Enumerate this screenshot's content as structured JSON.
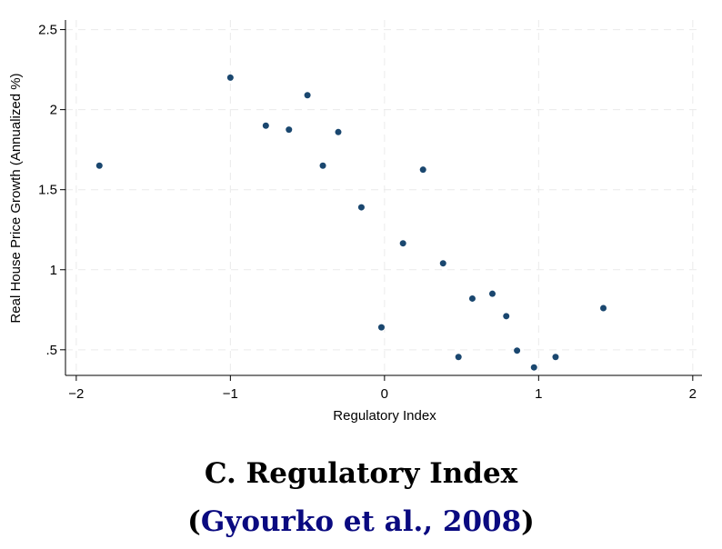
{
  "chart_data": {
    "type": "scatter",
    "x_label": "Regulatory Index",
    "y_label": "Real House Price Growth (Annualized %)",
    "x": [
      -1.85,
      -1.0,
      -0.77,
      -0.62,
      -0.5,
      -0.3,
      -0.4,
      -0.15,
      0.25,
      0.12,
      -0.02,
      0.38,
      0.57,
      0.7,
      0.79,
      0.48,
      0.86,
      0.97,
      1.11,
      1.42
    ],
    "values": [
      1.65,
      2.2,
      1.9,
      1.875,
      2.09,
      1.86,
      1.65,
      1.39,
      1.625,
      1.165,
      0.64,
      1.04,
      0.82,
      0.85,
      0.71,
      0.455,
      0.495,
      0.39,
      0.455,
      0.76
    ],
    "color": "#1a476f",
    "xlim": [
      -2.07,
      2.06
    ],
    "ylim": [
      0.34,
      2.56
    ],
    "xticks": [
      {
        "value": -2,
        "label": "−2"
      },
      {
        "value": -1,
        "label": "−1"
      },
      0,
      1,
      2
    ],
    "yticks": [
      {
        "value": 0.5,
        "label": ".5"
      },
      1,
      1.5,
      2,
      2.5
    ],
    "grid": true
  },
  "caption": {
    "title": "C. Regulatory Index",
    "open": "(",
    "citation": "Gyourko et al., 2008",
    "close": ")",
    "citation_color": "#0a0a80"
  }
}
